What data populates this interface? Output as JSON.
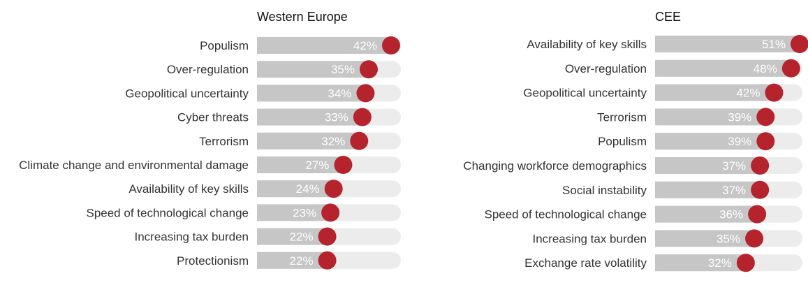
{
  "chart_data": [
    {
      "type": "bar",
      "title": "Western Europe",
      "categories": [
        "Populism",
        "Over-regulation",
        "Geopolitical uncertainty",
        "Cyber threats",
        "Terrorism",
        "Climate change and environmental damage",
        "Availability of key skills",
        "Speed of technological change",
        "Increasing tax burden",
        "Protectionism"
      ],
      "values": [
        42,
        35,
        34,
        33,
        32,
        27,
        24,
        23,
        22,
        22
      ],
      "value_labels": [
        "42%",
        "35%",
        "34%",
        "33%",
        "32%",
        "27%",
        "24%",
        "23%",
        "22%",
        "22%"
      ],
      "xlim": [
        0,
        42
      ],
      "orientation": "horizontal",
      "grid": false
    },
    {
      "type": "bar",
      "title": "CEE",
      "categories": [
        "Availability of key skills",
        "Over-regulation",
        "Geopolitical uncertainty",
        "Terrorism",
        "Populism",
        "Changing workforce demographics",
        "Social instability",
        "Speed of technological change",
        "Increasing tax burden",
        "Exchange rate volatility"
      ],
      "values": [
        51,
        48,
        42,
        39,
        39,
        37,
        37,
        36,
        35,
        32
      ],
      "value_labels": [
        "51%",
        "48%",
        "42%",
        "39%",
        "39%",
        "37%",
        "37%",
        "36%",
        "35%",
        "32%"
      ],
      "xlim": [
        0,
        51
      ],
      "orientation": "horizontal",
      "grid": false
    }
  ],
  "colors": {
    "bar_fill": "#c6c6c6",
    "track": "#ececec",
    "marker": "#b5242c",
    "value_text": "#ffffff",
    "category_text": "#333333"
  }
}
